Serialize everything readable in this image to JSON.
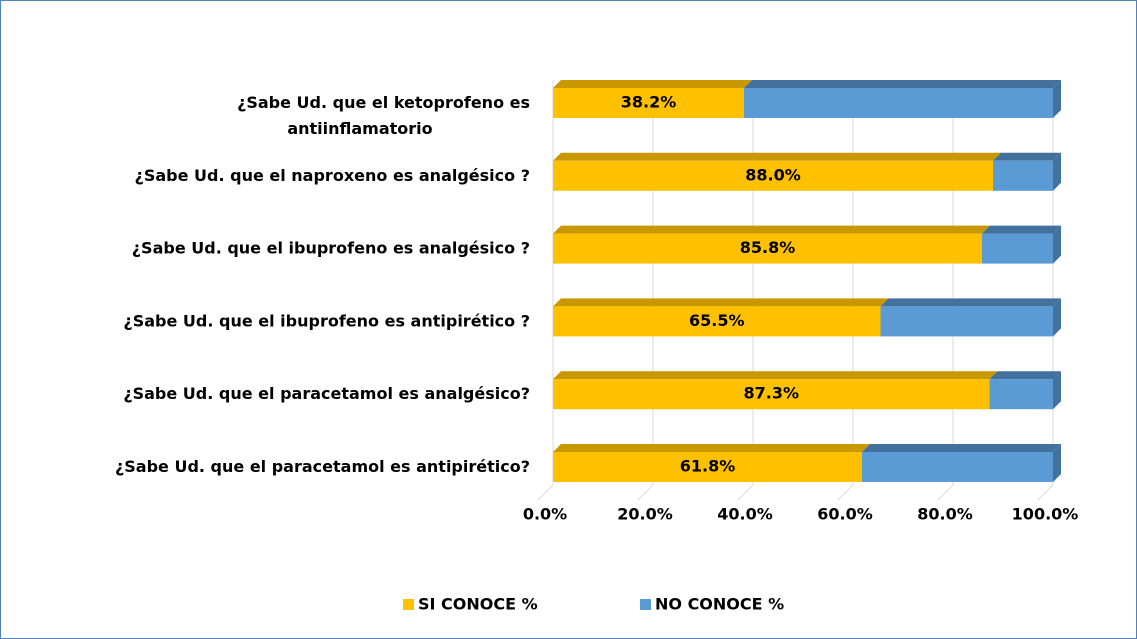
{
  "chart_data": {
    "type": "stacked-bar-horizontal",
    "categories": [
      "¿Sabe Ud. que el ketoprofeno es\nantiinflamatorio",
      "¿Sabe Ud. que el naproxeno es analgésico ?",
      "¿Sabe Ud. que el ibuprofeno es analgésico ?",
      "¿Sabe Ud. que el ibuprofeno es antipirético ?",
      "¿Sabe Ud. que el paracetamol es analgésico?",
      "¿Sabe Ud. que el paracetamol es antipirético?"
    ],
    "series": [
      {
        "name": "SI CONOCE %",
        "color": "#FFC000",
        "values": [
          38.2,
          88.0,
          85.8,
          65.5,
          87.3,
          61.8
        ],
        "value_labels": [
          "38.2%",
          "88.0%",
          "85.8%",
          "65.5%",
          "87.3%",
          "61.8%"
        ]
      },
      {
        "name": "NO CONOCE %",
        "color": "#5B9BD5",
        "values": [
          61.8,
          12.0,
          14.2,
          34.5,
          12.7,
          38.2
        ]
      }
    ],
    "xlim": [
      0,
      100
    ],
    "xticks": [
      {
        "value": 0,
        "label": "0.0%"
      },
      {
        "value": 20,
        "label": "20.0%"
      },
      {
        "value": 40,
        "label": "40.0%"
      },
      {
        "value": 60,
        "label": "60.0%"
      },
      {
        "value": 80,
        "label": "80.0%"
      },
      {
        "value": 100,
        "label": "100.0%"
      }
    ],
    "grid": true,
    "legend": "bottom"
  }
}
